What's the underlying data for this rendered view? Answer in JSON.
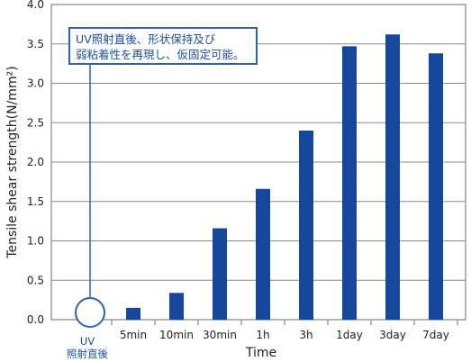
{
  "chart_data": {
    "type": "bar",
    "categories": [
      "5min",
      "10min",
      "30min",
      "1h",
      "3h",
      "1day",
      "3day",
      "7day"
    ],
    "values": [
      0.15,
      0.34,
      1.16,
      1.66,
      2.4,
      3.47,
      3.62,
      3.38
    ],
    "ylim": [
      0,
      4.0
    ],
    "yticks": [
      "0.0",
      "0.5",
      "1.0",
      "1.5",
      "2.0",
      "2.5",
      "3.0",
      "3.5",
      "4.0"
    ],
    "xlabel": "Time",
    "ylabel": "Tensile shear strength(N/mm²)",
    "grid": true,
    "bar_color": "#15489c",
    "uv_marker": {
      "line1": "UV",
      "line2": "照射直後"
    },
    "annotation": {
      "line1": "UV照射直後、形状保持及び",
      "line2": "弱粘着性を再現し、仮固定可能。"
    }
  }
}
